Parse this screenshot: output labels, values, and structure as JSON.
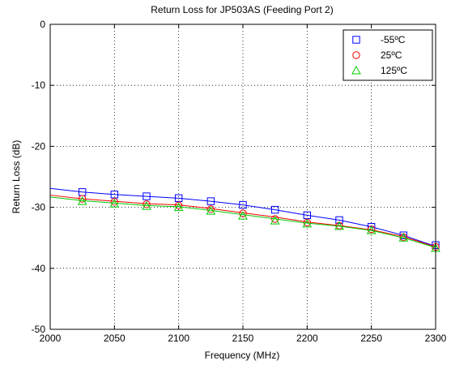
{
  "chart_data": {
    "type": "line",
    "title": "Return Loss for JP503AS (Feeding Port 2)",
    "xlabel": "Frequency (MHz)",
    "ylabel": "Return Loss (dB)",
    "xlim": [
      2000,
      2300
    ],
    "ylim": [
      -50,
      0
    ],
    "xticks": [
      2000,
      2050,
      2100,
      2150,
      2200,
      2250,
      2300
    ],
    "yticks": [
      0,
      -10,
      -20,
      -30,
      -40,
      -50
    ],
    "grid": true,
    "legend_position": "top-right",
    "marker_x": [
      2025,
      2050,
      2075,
      2100,
      2125,
      2150,
      2175,
      2200,
      2225,
      2250,
      2275,
      2300
    ],
    "series": [
      {
        "name": "-55ºC",
        "color": "#0000ff",
        "marker": "square",
        "line_x": [
          2000,
          2025,
          2050,
          2075,
          2100,
          2125,
          2150,
          2175,
          2200,
          2225,
          2250,
          2275,
          2300
        ],
        "line_y": [
          -26.9,
          -27.5,
          -27.9,
          -28.2,
          -28.5,
          -29.0,
          -29.6,
          -30.4,
          -31.3,
          -32.1,
          -33.2,
          -34.6,
          -36.4
        ],
        "marker_y": [
          -27.5,
          -27.9,
          -28.2,
          -28.5,
          -29.0,
          -29.6,
          -30.4,
          -31.3,
          -32.1,
          -33.2,
          -34.6,
          -36.2
        ]
      },
      {
        "name": "25ºC",
        "color": "#ff0000",
        "marker": "circle",
        "line_x": [
          2000,
          2025,
          2050,
          2075,
          2100,
          2125,
          2150,
          2175,
          2200,
          2225,
          2250,
          2275,
          2300
        ],
        "line_y": [
          -28.0,
          -28.6,
          -29.0,
          -29.4,
          -29.6,
          -30.2,
          -30.9,
          -31.6,
          -32.4,
          -33.0,
          -33.7,
          -34.8,
          -36.5
        ],
        "marker_y": [
          -28.6,
          -29.1,
          -29.5,
          -29.7,
          -30.3,
          -31.0,
          -31.9,
          -32.5,
          -33.0,
          -33.6,
          -34.9,
          -36.5
        ]
      },
      {
        "name": "125ºC",
        "color": "#00cc00",
        "marker": "triangle",
        "line_x": [
          2000,
          2025,
          2050,
          2075,
          2100,
          2125,
          2150,
          2175,
          2200,
          2225,
          2250,
          2275,
          2300
        ],
        "line_y": [
          -28.3,
          -28.9,
          -29.3,
          -29.7,
          -29.9,
          -30.5,
          -31.2,
          -31.9,
          -32.6,
          -33.1,
          -33.8,
          -35.0,
          -36.6
        ],
        "marker_y": [
          -29.0,
          -29.4,
          -29.8,
          -30.0,
          -30.6,
          -31.4,
          -32.2,
          -32.7,
          -33.1,
          -33.8,
          -35.0,
          -36.7
        ]
      }
    ]
  }
}
